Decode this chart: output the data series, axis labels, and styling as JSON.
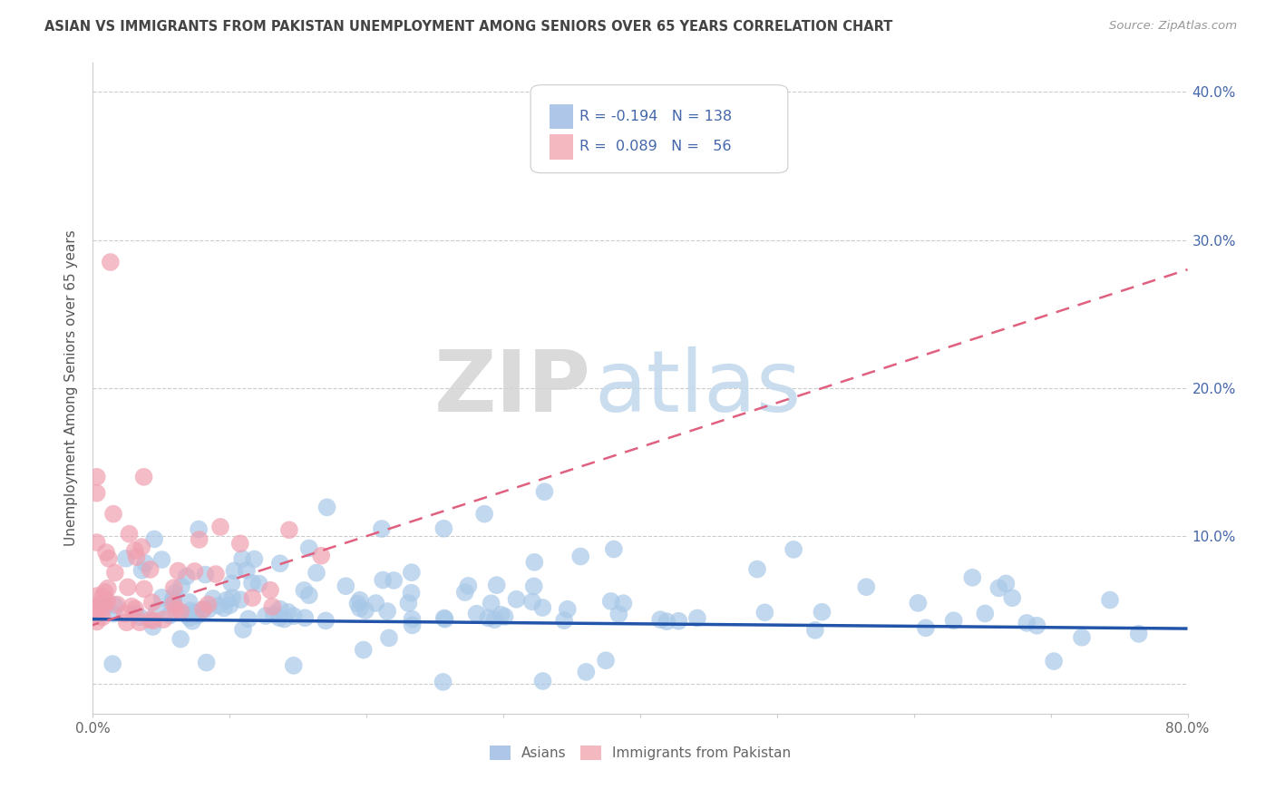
{
  "title": "ASIAN VS IMMIGRANTS FROM PAKISTAN UNEMPLOYMENT AMONG SENIORS OVER 65 YEARS CORRELATION CHART",
  "source": "Source: ZipAtlas.com",
  "ylabel": "Unemployment Among Seniors over 65 years",
  "xlim": [
    0.0,
    0.8
  ],
  "ylim": [
    -0.02,
    0.42
  ],
  "grid_color": "#cccccc",
  "background_color": "#ffffff",
  "asian_scatter_color": "#a8c8e8",
  "asian_line_color": "#2255aa",
  "pakistan_scatter_color": "#f0a0b0",
  "pakistan_line_color": "#e06080",
  "legend_asian_color": "#aec6e8",
  "legend_pakistan_color": "#f4b8c1",
  "text_color": "#4466aa",
  "label_color": "#888888",
  "watermark_zip_color": "#d0d0d0",
  "watermark_atlas_color": "#b8d0e8"
}
